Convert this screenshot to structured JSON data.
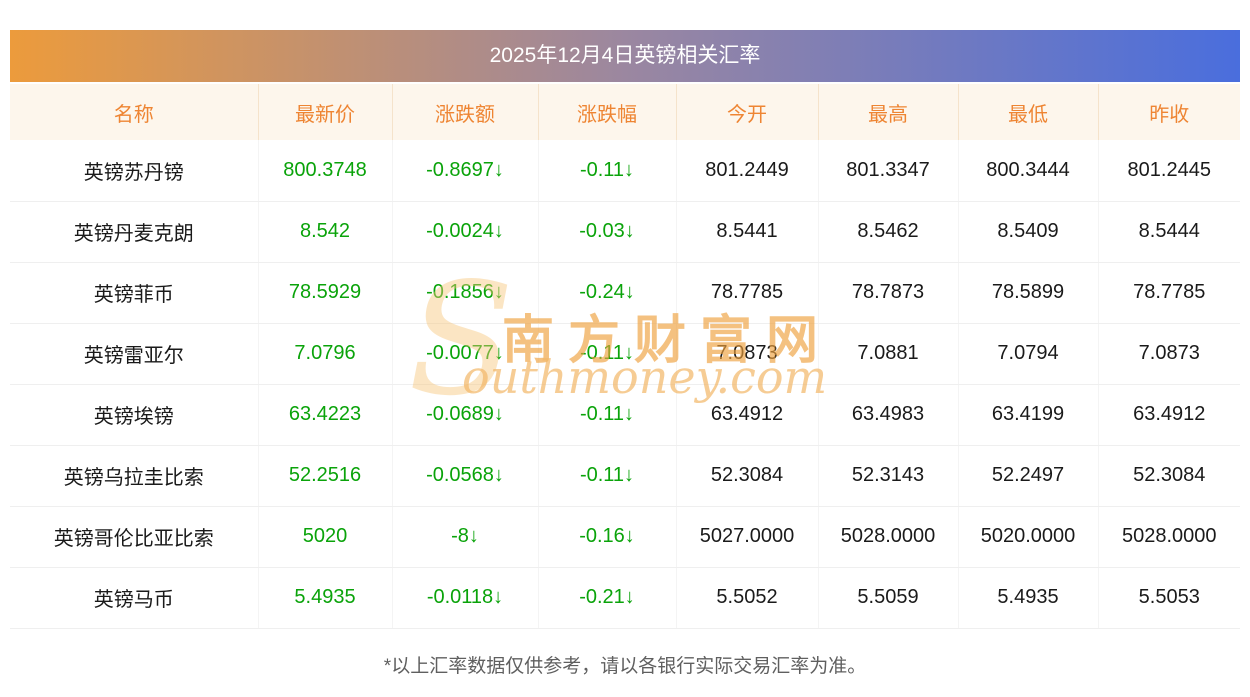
{
  "page": {
    "title": "2025年12月4日英镑相关汇率",
    "footnote": "*以上汇率数据仅供参考，请以各银行实际交易汇率为准。"
  },
  "watermark": {
    "initial": "S",
    "cn": "南方财富网",
    "en": "outhmoney.com"
  },
  "colors": {
    "header_gradient_left": "#ec9b3c",
    "header_gradient_right": "#4a6edd",
    "header_text": "#ffffff",
    "column_header_text": "#ee8533",
    "column_header_bg": "#fdf6ec",
    "decline_green": "#0aa30a",
    "cell_text": "#1a1a1a",
    "footnote_text": "#5f5f5f",
    "watermark_orange": "#f2a64a"
  },
  "chart_data": {
    "type": "table",
    "title": "2025年12月4日英镑相关汇率",
    "columns": [
      {
        "key": "name",
        "label": "名称"
      },
      {
        "key": "latest",
        "label": "最新价"
      },
      {
        "key": "change",
        "label": "涨跌额"
      },
      {
        "key": "change_pct",
        "label": "涨跌幅"
      },
      {
        "key": "open",
        "label": "今开"
      },
      {
        "key": "high",
        "label": "最高"
      },
      {
        "key": "low",
        "label": "最低"
      },
      {
        "key": "prev_close",
        "label": "昨收"
      }
    ],
    "rows": [
      {
        "name": "英镑苏丹镑",
        "latest": "800.3748",
        "change": "-0.8697↓",
        "change_pct": "-0.11↓",
        "open": "801.2449",
        "high": "801.3347",
        "low": "800.3444",
        "prev_close": "801.2445"
      },
      {
        "name": "英镑丹麦克朗",
        "latest": "8.542",
        "change": "-0.0024↓",
        "change_pct": "-0.03↓",
        "open": "8.5441",
        "high": "8.5462",
        "low": "8.5409",
        "prev_close": "8.5444"
      },
      {
        "name": "英镑菲币",
        "latest": "78.5929",
        "change": "-0.1856↓",
        "change_pct": "-0.24↓",
        "open": "78.7785",
        "high": "78.7873",
        "low": "78.5899",
        "prev_close": "78.7785"
      },
      {
        "name": "英镑雷亚尔",
        "latest": "7.0796",
        "change": "-0.0077↓",
        "change_pct": "-0.11↓",
        "open": "7.0873",
        "high": "7.0881",
        "low": "7.0794",
        "prev_close": "7.0873"
      },
      {
        "name": "英镑埃镑",
        "latest": "63.4223",
        "change": "-0.0689↓",
        "change_pct": "-0.11↓",
        "open": "63.4912",
        "high": "63.4983",
        "low": "63.4199",
        "prev_close": "63.4912"
      },
      {
        "name": "英镑乌拉圭比索",
        "latest": "52.2516",
        "change": "-0.0568↓",
        "change_pct": "-0.11↓",
        "open": "52.3084",
        "high": "52.3143",
        "low": "52.2497",
        "prev_close": "52.3084"
      },
      {
        "name": "英镑哥伦比亚比索",
        "latest": "5020",
        "change": "-8↓",
        "change_pct": "-0.16↓",
        "open": "5027.0000",
        "high": "5028.0000",
        "low": "5020.0000",
        "prev_close": "5028.0000"
      },
      {
        "name": "英镑马币",
        "latest": "5.4935",
        "change": "-0.0118↓",
        "change_pct": "-0.21↓",
        "open": "5.5052",
        "high": "5.5059",
        "low": "5.4935",
        "prev_close": "5.5053"
      }
    ]
  }
}
